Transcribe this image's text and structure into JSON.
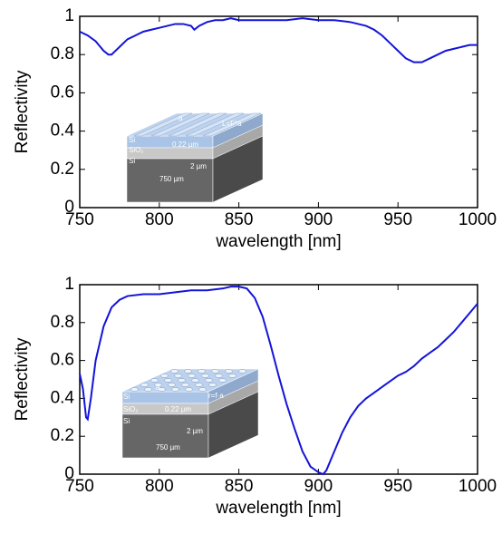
{
  "chart_data": [
    {
      "type": "line",
      "xlabel": "wavelength [nm]",
      "ylabel": "Reflectivity",
      "x": [
        750,
        755,
        760,
        765,
        768,
        770,
        775,
        780,
        785,
        790,
        795,
        800,
        805,
        810,
        815,
        820,
        822,
        825,
        830,
        835,
        840,
        845,
        850,
        860,
        870,
        880,
        890,
        900,
        910,
        920,
        925,
        930,
        935,
        940,
        945,
        950,
        955,
        960,
        965,
        970,
        975,
        980,
        985,
        990,
        995,
        1000
      ],
      "series": [
        {
          "color": "#1414d8",
          "values": [
            0.92,
            0.9,
            0.87,
            0.82,
            0.8,
            0.8,
            0.84,
            0.88,
            0.9,
            0.92,
            0.93,
            0.94,
            0.95,
            0.96,
            0.96,
            0.95,
            0.93,
            0.95,
            0.97,
            0.98,
            0.98,
            0.99,
            0.98,
            0.98,
            0.98,
            0.98,
            0.99,
            0.98,
            0.98,
            0.97,
            0.96,
            0.95,
            0.93,
            0.9,
            0.86,
            0.82,
            0.78,
            0.76,
            0.76,
            0.78,
            0.8,
            0.82,
            0.83,
            0.84,
            0.85,
            0.85
          ]
        }
      ],
      "xlim": [
        750,
        1000
      ],
      "xticks": [
        750,
        800,
        850,
        900,
        950,
        1000
      ],
      "ylim": [
        0,
        1
      ],
      "yticks": [
        0,
        0.2,
        0.4,
        0.6,
        0.8,
        1
      ],
      "annotations": [
        "Si",
        "SiO₂",
        "Si",
        "a",
        "L=F*a",
        "0.22 µm",
        "2 µm",
        "750 µm"
      ]
    },
    {
      "type": "line",
      "xlabel": "wavelength [nm]",
      "ylabel": "Reflectivity",
      "x": [
        750,
        752,
        754,
        755,
        757,
        760,
        765,
        770,
        775,
        780,
        790,
        800,
        810,
        820,
        830,
        840,
        845,
        850,
        855,
        860,
        865,
        870,
        875,
        880,
        885,
        890,
        895,
        900,
        903,
        905,
        910,
        915,
        920,
        925,
        930,
        935,
        940,
        945,
        950,
        955,
        960,
        965,
        970,
        975,
        980,
        985,
        990,
        995,
        1000
      ],
      "series": [
        {
          "color": "#1414d8",
          "values": [
            0.53,
            0.45,
            0.3,
            0.29,
            0.4,
            0.6,
            0.78,
            0.88,
            0.92,
            0.94,
            0.95,
            0.95,
            0.96,
            0.97,
            0.97,
            0.98,
            0.99,
            0.99,
            0.98,
            0.93,
            0.83,
            0.68,
            0.52,
            0.37,
            0.24,
            0.12,
            0.04,
            0.01,
            0.0,
            0.02,
            0.12,
            0.22,
            0.3,
            0.36,
            0.4,
            0.43,
            0.46,
            0.49,
            0.52,
            0.54,
            0.57,
            0.61,
            0.64,
            0.67,
            0.71,
            0.75,
            0.8,
            0.85,
            0.9
          ]
        }
      ],
      "xlim": [
        750,
        1000
      ],
      "xticks": [
        750,
        800,
        850,
        900,
        950,
        1000
      ],
      "ylim": [
        0,
        1
      ],
      "yticks": [
        0,
        0.2,
        0.4,
        0.6,
        0.8,
        1
      ],
      "annotations": [
        "Si",
        "SiO₂",
        "Si",
        "a",
        "r=f·a",
        "0.22 µm",
        "2 µm",
        "750 µm"
      ]
    }
  ]
}
